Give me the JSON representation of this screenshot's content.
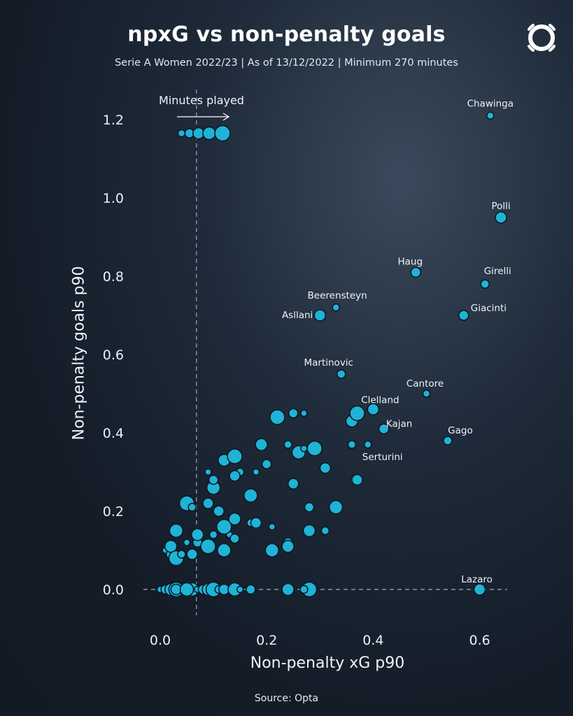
{
  "header": {
    "title": "npxG vs non-penalty goals",
    "subtitle": "Serie A Women 2022/23 | As of 13/12/2022 | Minimum 270 minutes",
    "source": "Source: Opta"
  },
  "colors": {
    "point": "#1fb3d6",
    "background": "#1a2433",
    "text": "#ffffff"
  },
  "icons": {
    "logo": "opta-logo-icon"
  },
  "chart_data": {
    "type": "scatter",
    "xlabel": "Non-penalty xG p90",
    "ylabel": "Non-penalty goals p90",
    "xlim": [
      -0.03,
      0.67
    ],
    "ylim": [
      -0.03,
      1.27
    ],
    "xticks": [
      "0.0",
      "0.2",
      "0.4",
      "0.6"
    ],
    "yticks": [
      "0.0",
      "0.2",
      "0.4",
      "0.6",
      "0.8",
      "1.0",
      "1.2"
    ],
    "grid": false,
    "reference_line_x": 0.068,
    "reference_line_y": 0.0,
    "size_legend_label": "Minutes played",
    "labeled_points": [
      {
        "name": "Chawinga",
        "x": 0.62,
        "y": 1.21
      },
      {
        "name": "Polli",
        "x": 0.64,
        "y": 0.95
      },
      {
        "name": "Haug",
        "x": 0.48,
        "y": 0.81
      },
      {
        "name": "Girelli",
        "x": 0.61,
        "y": 0.78
      },
      {
        "name": "Beerensteyn",
        "x": 0.33,
        "y": 0.72
      },
      {
        "name": "Asllani",
        "x": 0.3,
        "y": 0.7
      },
      {
        "name": "Giacinti",
        "x": 0.57,
        "y": 0.7
      },
      {
        "name": "Martinovic",
        "x": 0.34,
        "y": 0.55
      },
      {
        "name": "Cantore",
        "x": 0.5,
        "y": 0.5
      },
      {
        "name": "Clelland",
        "x": 0.4,
        "y": 0.46
      },
      {
        "name": "Kajan",
        "x": 0.42,
        "y": 0.41
      },
      {
        "name": "Gago",
        "x": 0.54,
        "y": 0.38
      },
      {
        "name": "Serturini",
        "x": 0.39,
        "y": 0.37
      },
      {
        "name": "Lazaro",
        "x": 0.6,
        "y": 0.0
      }
    ],
    "other_points": [
      [
        0.0,
        0.0
      ],
      [
        0.01,
        0.0
      ],
      [
        0.02,
        0.0
      ],
      [
        0.03,
        0.0
      ],
      [
        0.04,
        0.0
      ],
      [
        0.05,
        0.0
      ],
      [
        0.06,
        0.0
      ],
      [
        0.07,
        0.0
      ],
      [
        0.08,
        0.0
      ],
      [
        0.09,
        0.0
      ],
      [
        0.1,
        0.0
      ],
      [
        0.11,
        0.0
      ],
      [
        0.12,
        0.0
      ],
      [
        0.14,
        0.0
      ],
      [
        0.15,
        0.0
      ],
      [
        0.17,
        0.0
      ],
      [
        0.24,
        0.0
      ],
      [
        0.28,
        0.0
      ],
      [
        0.27,
        0.0
      ],
      [
        0.03,
        0.0
      ],
      [
        0.05,
        0.0
      ],
      [
        0.01,
        0.1
      ],
      [
        0.02,
        0.09
      ],
      [
        0.02,
        0.11
      ],
      [
        0.03,
        0.08
      ],
      [
        0.04,
        0.09
      ],
      [
        0.06,
        0.09
      ],
      [
        0.03,
        0.15
      ],
      [
        0.05,
        0.12
      ],
      [
        0.07,
        0.12
      ],
      [
        0.07,
        0.14
      ],
      [
        0.09,
        0.11
      ],
      [
        0.1,
        0.14
      ],
      [
        0.11,
        0.2
      ],
      [
        0.12,
        0.1
      ],
      [
        0.13,
        0.14
      ],
      [
        0.14,
        0.13
      ],
      [
        0.14,
        0.18
      ],
      [
        0.12,
        0.16
      ],
      [
        0.17,
        0.17
      ],
      [
        0.18,
        0.17
      ],
      [
        0.21,
        0.1
      ],
      [
        0.21,
        0.16
      ],
      [
        0.24,
        0.12
      ],
      [
        0.24,
        0.11
      ],
      [
        0.05,
        0.22
      ],
      [
        0.06,
        0.21
      ],
      [
        0.09,
        0.22
      ],
      [
        0.1,
        0.26
      ],
      [
        0.09,
        0.3
      ],
      [
        0.1,
        0.28
      ],
      [
        0.12,
        0.33
      ],
      [
        0.14,
        0.34
      ],
      [
        0.15,
        0.3
      ],
      [
        0.14,
        0.29
      ],
      [
        0.17,
        0.24
      ],
      [
        0.18,
        0.3
      ],
      [
        0.2,
        0.32
      ],
      [
        0.19,
        0.37
      ],
      [
        0.22,
        0.44
      ],
      [
        0.24,
        0.37
      ],
      [
        0.25,
        0.27
      ],
      [
        0.26,
        0.35
      ],
      [
        0.27,
        0.36
      ],
      [
        0.28,
        0.21
      ],
      [
        0.28,
        0.15
      ],
      [
        0.29,
        0.36
      ],
      [
        0.31,
        0.15
      ],
      [
        0.31,
        0.31
      ],
      [
        0.33,
        0.21
      ],
      [
        0.27,
        0.45
      ],
      [
        0.25,
        0.45
      ],
      [
        0.36,
        0.43
      ],
      [
        0.37,
        0.45
      ],
      [
        0.36,
        0.37
      ],
      [
        0.37,
        0.28
      ]
    ],
    "size_legend": [
      {
        "x": 0.04,
        "y": 1.165
      },
      {
        "x": 0.055,
        "y": 1.165
      },
      {
        "x": 0.072,
        "y": 1.165
      },
      {
        "x": 0.092,
        "y": 1.165
      },
      {
        "x": 0.117,
        "y": 1.165
      }
    ]
  }
}
